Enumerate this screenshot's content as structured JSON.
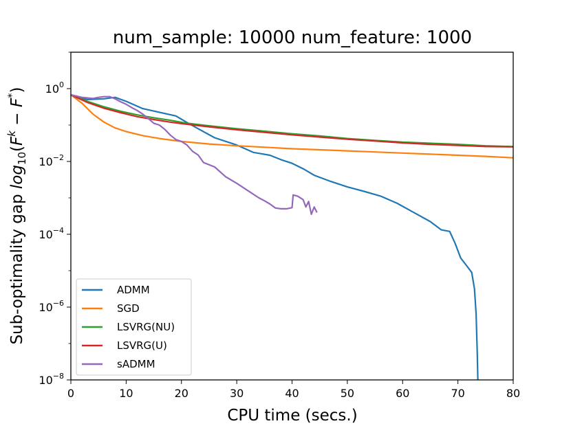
{
  "chart_data": {
    "type": "line",
    "title": "num_sample: 10000 num_feature: 1000",
    "xlabel": "CPU time (secs.)",
    "ylabel": {
      "prefix": "Sub-optimality gap ",
      "log": "log",
      "log_sub": "10",
      "open": "(",
      "F1": "F",
      "sup_k": "k",
      "minus": " − ",
      "F2": "F",
      "sup_star": "*",
      "close": ")"
    },
    "y_scale": "log10",
    "xlim": [
      0,
      80
    ],
    "ylim": [
      -8,
      1
    ],
    "x_ticks": [
      {
        "value": 0,
        "label": "0"
      },
      {
        "value": 10,
        "label": "10"
      },
      {
        "value": 20,
        "label": "20"
      },
      {
        "value": 30,
        "label": "30"
      },
      {
        "value": 40,
        "label": "40"
      },
      {
        "value": 50,
        "label": "50"
      },
      {
        "value": 60,
        "label": "60"
      },
      {
        "value": 70,
        "label": "70"
      },
      {
        "value": 80,
        "label": "80"
      }
    ],
    "y_ticks": [
      {
        "value": 0,
        "base": "10",
        "exp": "0"
      },
      {
        "value": -2,
        "base": "10",
        "exp": "−2"
      },
      {
        "value": -4,
        "base": "10",
        "exp": "−4"
      },
      {
        "value": -6,
        "base": "10",
        "exp": "−6"
      },
      {
        "value": -8,
        "base": "10",
        "exp": "−8"
      }
    ],
    "grid": false,
    "legend_position": "lower-left",
    "series": [
      {
        "name": "ADMM",
        "color": "#1f77b4",
        "x": [
          0,
          3,
          6,
          8,
          10,
          13,
          16,
          19,
          21,
          23,
          26,
          30,
          33,
          36,
          38,
          40,
          42,
          44,
          47,
          50,
          53,
          56,
          59,
          62,
          65,
          67,
          68.5,
          69.5,
          70.5,
          71.5,
          72.5,
          73,
          73.3,
          73.5,
          73.6
        ],
        "y": [
          -0.17,
          -0.3,
          -0.28,
          -0.24,
          -0.35,
          -0.55,
          -0.65,
          -0.75,
          -0.93,
          -1.1,
          -1.35,
          -1.55,
          -1.75,
          -1.83,
          -1.95,
          -2.05,
          -2.2,
          -2.38,
          -2.55,
          -2.7,
          -2.82,
          -2.95,
          -3.15,
          -3.4,
          -3.65,
          -3.88,
          -3.92,
          -4.25,
          -4.65,
          -4.85,
          -5.05,
          -5.5,
          -6.2,
          -7.3,
          -8.0
        ]
      },
      {
        "name": "SGD",
        "color": "#ff7f0e",
        "x": [
          0,
          2,
          4,
          6,
          8,
          10,
          13,
          16,
          20,
          25,
          30,
          35,
          40,
          45,
          50,
          55,
          60,
          65,
          70,
          75,
          80
        ],
        "y": [
          -0.17,
          -0.4,
          -0.7,
          -0.92,
          -1.08,
          -1.18,
          -1.29,
          -1.37,
          -1.45,
          -1.52,
          -1.57,
          -1.61,
          -1.65,
          -1.68,
          -1.71,
          -1.74,
          -1.77,
          -1.8,
          -1.83,
          -1.86,
          -1.9
        ]
      },
      {
        "name": "LSVRG(NU)",
        "color": "#2ca02c",
        "x": [
          0,
          3,
          6,
          9,
          12,
          15,
          18,
          21,
          25,
          30,
          35,
          40,
          45,
          50,
          55,
          60,
          65,
          70,
          75,
          80
        ],
        "y": [
          -0.17,
          -0.35,
          -0.5,
          -0.62,
          -0.72,
          -0.8,
          -0.87,
          -0.95,
          -1.02,
          -1.1,
          -1.17,
          -1.24,
          -1.3,
          -1.37,
          -1.42,
          -1.47,
          -1.5,
          -1.53,
          -1.57,
          -1.59
        ]
      },
      {
        "name": "LSVRG(U)",
        "color": "#d62728",
        "x": [
          0,
          3,
          6,
          9,
          12,
          15,
          18,
          21,
          25,
          30,
          35,
          40,
          45,
          50,
          55,
          60,
          65,
          70,
          75,
          80
        ],
        "y": [
          -0.17,
          -0.38,
          -0.54,
          -0.66,
          -0.77,
          -0.85,
          -0.92,
          -0.98,
          -1.05,
          -1.13,
          -1.2,
          -1.27,
          -1.33,
          -1.39,
          -1.44,
          -1.49,
          -1.53,
          -1.56,
          -1.59,
          -1.6
        ]
      },
      {
        "name": "sADMM",
        "color": "#9467bd",
        "x": [
          0,
          2,
          4,
          5,
          6,
          7,
          8,
          9,
          10,
          11,
          12,
          13,
          14,
          15,
          16,
          17,
          18,
          19,
          20,
          21,
          22,
          23,
          24,
          26,
          28,
          30,
          32,
          34,
          35,
          36,
          37,
          38,
          39,
          40,
          40.2,
          41,
          42,
          42.5,
          43,
          43.5,
          44,
          44.5
        ],
        "y": [
          -0.17,
          -0.24,
          -0.27,
          -0.24,
          -0.22,
          -0.22,
          -0.28,
          -0.36,
          -0.43,
          -0.52,
          -0.6,
          -0.7,
          -0.82,
          -0.95,
          -1.0,
          -1.12,
          -1.28,
          -1.4,
          -1.45,
          -1.55,
          -1.72,
          -1.82,
          -2.03,
          -2.15,
          -2.42,
          -2.6,
          -2.8,
          -3.0,
          -3.08,
          -3.17,
          -3.28,
          -3.3,
          -3.3,
          -3.27,
          -2.92,
          -2.95,
          -3.05,
          -3.25,
          -3.1,
          -3.45,
          -3.25,
          -3.4
        ]
      }
    ]
  }
}
